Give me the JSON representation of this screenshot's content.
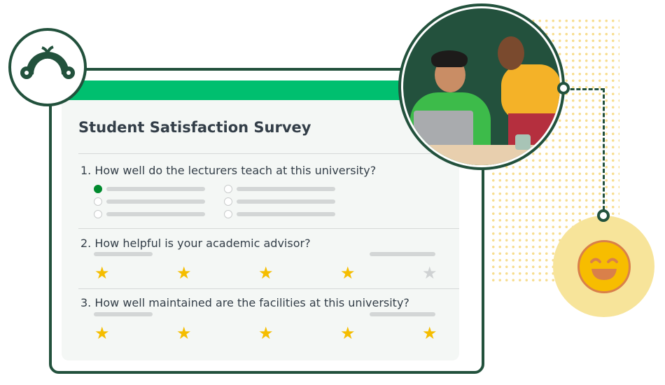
{
  "survey": {
    "title": "Student Satisfaction Survey",
    "questions": [
      {
        "label": "1. How well do the lecturers teach at this university?",
        "type": "multiple-choice",
        "selected_option": 1,
        "options_count": 6
      },
      {
        "label": "2. How helpful is your academic advisor?",
        "type": "star-rating",
        "rating": 4,
        "max": 5
      },
      {
        "label": "3. How well maintained are the facilities at this university?",
        "type": "star-rating",
        "rating": 5,
        "max": 5
      }
    ]
  },
  "colors": {
    "brand_dark": "#22513c",
    "brand_green": "#00bf6f",
    "star": "#f5bd00",
    "star_off": "#cfd2d3",
    "smiley_bg": "#f7e49a"
  },
  "icons": {
    "logo": "surveymonkey-logo-icon",
    "smiley": "smiley-face-icon",
    "star": "star-icon"
  }
}
